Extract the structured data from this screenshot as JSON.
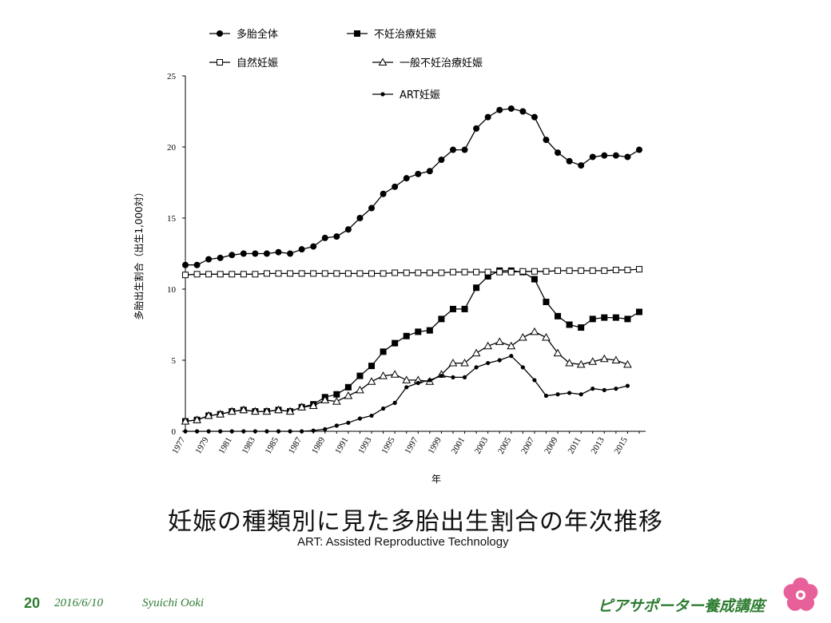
{
  "chart_data": {
    "type": "line",
    "ylabel": "多胎出生割合（出生1,000対）",
    "xlabel": "年",
    "ylim": [
      0,
      25
    ],
    "yticks": [
      0,
      5,
      10,
      15,
      20,
      25
    ],
    "x": [
      1977,
      1978,
      1979,
      1980,
      1981,
      1982,
      1983,
      1984,
      1985,
      1986,
      1987,
      1988,
      1989,
      1990,
      1991,
      1992,
      1993,
      1994,
      1995,
      1996,
      1997,
      1998,
      1999,
      2000,
      2001,
      2002,
      2003,
      2004,
      2005,
      2006,
      2007,
      2008,
      2009,
      2010,
      2011,
      2012,
      2013,
      2014,
      2015,
      2016
    ],
    "xtick_labels": [
      "1977",
      "1979",
      "1981",
      "1983",
      "1985",
      "1987",
      "1989",
      "1991",
      "1993",
      "1995",
      "1997",
      "1999",
      "2001",
      "2003",
      "2005",
      "2007",
      "2009",
      "2011",
      "2013",
      "2015"
    ],
    "legend_position": "top-left",
    "grid": false,
    "series": [
      {
        "name": "多胎全体",
        "marker": "filled-circle",
        "color": "#000000",
        "values": [
          11.7,
          11.7,
          12.1,
          12.2,
          12.4,
          12.5,
          12.5,
          12.5,
          12.6,
          12.5,
          12.8,
          13.0,
          13.6,
          13.7,
          14.2,
          15.0,
          15.7,
          16.7,
          17.2,
          17.8,
          18.1,
          18.3,
          19.1,
          19.8,
          19.8,
          21.3,
          22.1,
          22.6,
          22.7,
          22.5,
          22.1,
          20.5,
          19.6,
          19.0,
          18.7,
          19.3,
          19.4,
          19.4,
          19.3,
          19.8
        ]
      },
      {
        "name": "不妊治療妊娠",
        "marker": "filled-square",
        "color": "#000000",
        "values": [
          0.7,
          0.8,
          1.1,
          1.2,
          1.4,
          1.5,
          1.4,
          1.4,
          1.5,
          1.4,
          1.7,
          1.9,
          2.4,
          2.6,
          3.1,
          3.9,
          4.6,
          5.6,
          6.2,
          6.7,
          7.0,
          7.1,
          7.9,
          8.6,
          8.6,
          10.1,
          10.9,
          11.3,
          11.3,
          11.2,
          10.7,
          9.1,
          8.1,
          7.5,
          7.3,
          7.9,
          8.0,
          8.0,
          7.9,
          8.4
        ]
      },
      {
        "name": "自然妊娠",
        "marker": "open-square",
        "color": "#000000",
        "values": [
          11.0,
          11.05,
          11.05,
          11.05,
          11.05,
          11.05,
          11.05,
          11.1,
          11.1,
          11.1,
          11.1,
          11.1,
          11.1,
          11.1,
          11.1,
          11.1,
          11.1,
          11.1,
          11.15,
          11.15,
          11.15,
          11.15,
          11.15,
          11.2,
          11.2,
          11.2,
          11.2,
          11.2,
          11.2,
          11.25,
          11.25,
          11.25,
          11.3,
          11.3,
          11.3,
          11.3,
          11.3,
          11.35,
          11.35,
          11.4
        ]
      },
      {
        "name": "一般不妊治療妊娠",
        "marker": "open-triangle",
        "color": "#000000",
        "values": [
          0.7,
          0.8,
          1.1,
          1.2,
          1.4,
          1.5,
          1.4,
          1.4,
          1.5,
          1.4,
          1.7,
          1.8,
          2.2,
          2.1,
          2.5,
          2.9,
          3.5,
          3.9,
          4.0,
          3.6,
          3.6,
          3.5,
          4.0,
          4.8,
          4.8,
          5.5,
          6.0,
          6.3,
          6.0,
          6.6,
          7.0,
          6.6,
          5.5,
          4.8,
          4.7,
          4.9,
          5.1,
          5.0,
          4.7,
          null
        ]
      },
      {
        "name": "ART妊娠",
        "marker": "small-filled-circle",
        "color": "#000000",
        "values": [
          0,
          0,
          0,
          0,
          0,
          0,
          0,
          0,
          0,
          0,
          0,
          0.05,
          0.15,
          0.4,
          0.6,
          0.9,
          1.1,
          1.6,
          2.0,
          3.1,
          3.4,
          3.6,
          3.9,
          3.8,
          3.8,
          4.5,
          4.8,
          5.0,
          5.3,
          4.5,
          3.6,
          2.5,
          2.6,
          2.7,
          2.6,
          3.0,
          2.9,
          3.0,
          3.2,
          null
        ]
      }
    ]
  },
  "captions": {
    "main": "妊娠の種類別に見た多胎出生割合の年次推移",
    "sub": "ART: Assisted Reproductive Technology"
  },
  "footer": {
    "page_number": "20",
    "date": "2016/6/10",
    "author": "Syuichi Ooki",
    "title": "ピアサポーター養成講座",
    "accent_color": "#2e7d32",
    "logo_color": "#e8609a"
  }
}
